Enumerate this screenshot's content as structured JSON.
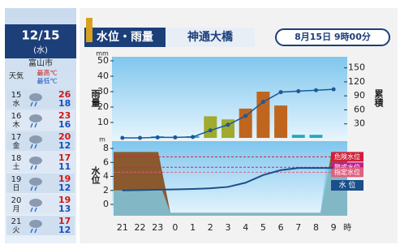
{
  "sidebar": {
    "date": "12/15",
    "weekday": "(水)",
    "city": "富山市",
    "weather_label": "天気",
    "high_label": "最高℃",
    "low_label": "最低℃",
    "forecast": [
      {
        "day": "15",
        "weekday": "水",
        "high": "26",
        "low": "18"
      },
      {
        "day": "16",
        "weekday": "木",
        "high": "23",
        "low": "16"
      },
      {
        "day": "17",
        "weekday": "金",
        "high": "20",
        "low": "12"
      },
      {
        "day": "18",
        "weekday": "土",
        "high": "17",
        "low": "11"
      },
      {
        "day": "19",
        "weekday": "日",
        "high": "19",
        "low": "12"
      },
      {
        "day": "20",
        "weekday": "月",
        "high": "19",
        "low": "13"
      },
      {
        "day": "21",
        "weekday": "火",
        "high": "17",
        "low": "12"
      }
    ]
  },
  "header": {
    "title": "水位・雨量",
    "station": "神通大橋",
    "time": "8月15日 9時00分"
  },
  "chart_data": [
    {
      "type": "bar",
      "ylabel": "雨量",
      "yunit": "mm",
      "y2label": "累積",
      "categories": [
        "21",
        "22",
        "23",
        "0",
        "1",
        "2",
        "3",
        "4",
        "5",
        "6",
        "7",
        "8",
        "9"
      ],
      "x_unit": "時",
      "ylim": [
        0,
        50
      ],
      "yticks": [
        10,
        20,
        30,
        40,
        50
      ],
      "y2lim": [
        0,
        165
      ],
      "y2ticks": [
        30,
        60,
        90,
        120,
        150
      ],
      "series": [
        {
          "name": "雨量",
          "values": [
            0,
            0,
            1,
            0,
            1,
            14,
            12,
            19,
            30,
            21,
            2,
            2,
            0
          ],
          "colors": [
            "#2aa8b8",
            "#2aa8b8",
            "#2aa8b8",
            "#2aa8b8",
            "#2aa8b8",
            "#a0aa2c",
            "#a0aa2c",
            "#c0651e",
            "#c0651e",
            "#c0651e",
            "#2aa8b8",
            "#2aa8b8",
            "#2aa8b8"
          ]
        },
        {
          "name": "累積",
          "axis": "y2",
          "color": "#1a5a9a",
          "values": [
            0,
            0,
            1,
            1,
            2,
            16,
            28,
            47,
            77,
            98,
            100,
            102,
            104
          ]
        }
      ]
    },
    {
      "type": "line",
      "ylabel": "水位",
      "yunit": "m",
      "ylim": [
        -1.2,
        8
      ],
      "yticks": [
        0,
        2,
        4,
        6,
        8
      ],
      "thresholds": [
        {
          "name": "危険水位",
          "value": 6.8,
          "color": "#d0203a"
        },
        {
          "name": "警戒水位",
          "value": 5.3,
          "color": "#c0208a"
        },
        {
          "name": "指定水位",
          "value": 4.6,
          "color": "#e06080"
        }
      ],
      "series": [
        {
          "name": "水 位",
          "color": "#1a4f8a",
          "values": [
            2,
            2.05,
            2.1,
            2.15,
            2.2,
            2.3,
            2.5,
            3.1,
            4.2,
            4.9,
            5.2,
            5.2,
            5.2
          ]
        }
      ]
    }
  ]
}
